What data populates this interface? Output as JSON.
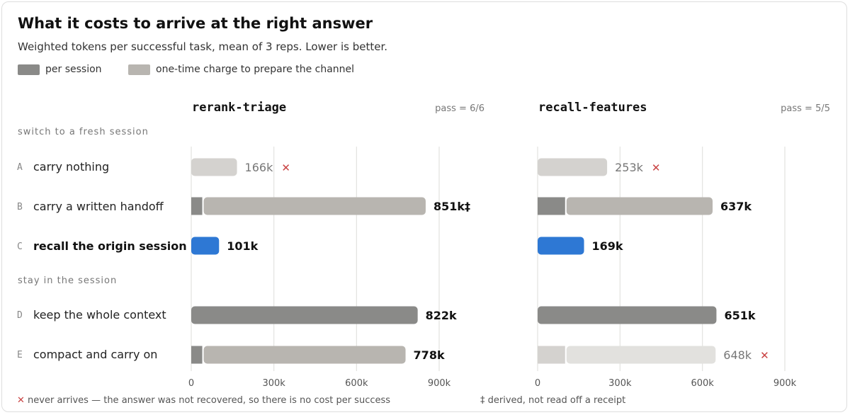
{
  "title": "What it costs to arrive at the right answer",
  "subtitle": "Weighted tokens per successful task, mean of 3 reps. Lower is better.",
  "legend": {
    "per_session": "per session",
    "one_time": "one-time charge to prepare the channel"
  },
  "groups": {
    "fresh": "switch to a fresh session",
    "stay": "stay in the session"
  },
  "rows": [
    {
      "letter": "A",
      "label": "carry nothing"
    },
    {
      "letter": "B",
      "label": "carry a written handoff"
    },
    {
      "letter": "C",
      "label": "recall the origin session"
    },
    {
      "letter": "D",
      "label": "keep the whole context"
    },
    {
      "letter": "E",
      "label": "compact and carry on"
    }
  ],
  "footnotes": {
    "x_mark": "✕",
    "never": "never arrives — the answer was not recovered, so there is no cost per success",
    "derived": "‡ derived, not read off a receipt"
  },
  "colors": {
    "per_session": "#8a8a88",
    "one_time": "#b8b5b0",
    "highlight": "#2e78d4",
    "failed": "#d4d2cf",
    "failed_light": "#e2e1de",
    "x_mark": "#c94343",
    "grid": "#e3e3e0"
  },
  "chart_data": [
    {
      "type": "bar",
      "stacked": true,
      "title": "rerank-triage",
      "pass": "pass = 6/6",
      "categories": [
        "A",
        "B",
        "C",
        "D",
        "E"
      ],
      "series": [
        {
          "name": "per session",
          "values": [
            166,
            40,
            101,
            822,
            40
          ]
        },
        {
          "name": "one-time charge to prepare the channel",
          "values": [
            0,
            811,
            0,
            0,
            738
          ]
        }
      ],
      "totals": [
        166,
        851,
        101,
        822,
        778
      ],
      "labels": [
        "166k",
        "851k‡",
        "101k",
        "822k",
        "778k"
      ],
      "failed": [
        true,
        false,
        false,
        false,
        false
      ],
      "highlight": [
        false,
        false,
        true,
        false,
        false
      ],
      "xlim": [
        0,
        1000
      ],
      "xticks": [
        0,
        300,
        600,
        900
      ],
      "xtick_labels": [
        "0",
        "300k",
        "600k",
        "900k"
      ]
    },
    {
      "type": "bar",
      "stacked": true,
      "title": "recall-features",
      "pass": "pass = 5/5",
      "categories": [
        "A",
        "B",
        "C",
        "D",
        "E"
      ],
      "series": [
        {
          "name": "per session",
          "values": [
            253,
            100,
            169,
            651,
            100
          ]
        },
        {
          "name": "one-time charge to prepare the channel",
          "values": [
            0,
            537,
            0,
            0,
            548
          ]
        }
      ],
      "totals": [
        253,
        637,
        169,
        651,
        648
      ],
      "labels": [
        "253k",
        "637k",
        "169k",
        "651k",
        "648k"
      ],
      "failed": [
        true,
        false,
        false,
        false,
        true
      ],
      "highlight": [
        false,
        false,
        true,
        false,
        false
      ],
      "xlim": [
        0,
        1000
      ],
      "xticks": [
        0,
        300,
        600,
        900
      ],
      "xtick_labels": [
        "0",
        "300k",
        "600k",
        "900k"
      ]
    }
  ]
}
